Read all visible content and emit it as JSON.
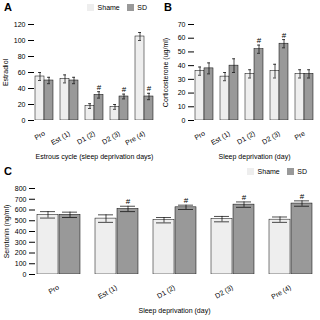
{
  "chart_data": [
    {
      "type": "bar",
      "title": "A",
      "x_label": "Estrous cycle (sleep deprivation days)",
      "y_label": "Estradiol",
      "categories": [
        "Pro",
        "Est (1)",
        "D1 (2)",
        "D2 (3)",
        "Pre (4)"
      ],
      "series": [
        {
          "name": "Shame",
          "color": "#eeeeee",
          "values": [
            55,
            52,
            18,
            17,
            105
          ],
          "errors": [
            5,
            5,
            3,
            3,
            5
          ]
        },
        {
          "name": "SD",
          "color": "#999999",
          "values": [
            50,
            50,
            32,
            30,
            30
          ],
          "errors": [
            4,
            4,
            4,
            3,
            4
          ]
        }
      ],
      "annotations": [
        {
          "text": "#",
          "series": "SD",
          "category": "D1 (2)"
        },
        {
          "text": "#",
          "series": "SD",
          "category": "D2 (3)"
        },
        {
          "text": "#",
          "series": "SD",
          "category": "Pre (4)"
        }
      ],
      "ylim": [
        0,
        120
      ],
      "yticks": [
        0,
        20,
        40,
        60,
        80,
        100,
        120
      ],
      "grid": false,
      "legend": "top"
    },
    {
      "type": "bar",
      "title": "B",
      "x_label": "Sleep deprivation (day)",
      "y_label": "Corticosterone (ug/ml)",
      "categories": [
        "Pro",
        "Est (1)",
        "D1 (2)",
        "D2 (3)",
        "Pre"
      ],
      "series": [
        {
          "name": "Shame",
          "color": "#eeeeee",
          "values": [
            36,
            32,
            34,
            36,
            34
          ],
          "errors": [
            3,
            3,
            3,
            5,
            3
          ]
        },
        {
          "name": "SD",
          "color": "#999999",
          "values": [
            38,
            40,
            52,
            56,
            34
          ],
          "errors": [
            4,
            5,
            3,
            3,
            3
          ]
        }
      ],
      "annotations": [
        {
          "text": "#",
          "series": "SD",
          "category": "D1 (2)"
        },
        {
          "text": "#",
          "series": "SD",
          "category": "D2 (3)"
        }
      ],
      "ylim": [
        0,
        70
      ],
      "yticks": [
        0,
        10,
        20,
        30,
        40,
        50,
        60,
        70
      ],
      "grid": false
    },
    {
      "type": "bar",
      "title": "C",
      "x_label": "Sleep deprivation (day)",
      "y_label": "Serotonin (ng/ml)",
      "categories": [
        "Pro",
        "Est (1)",
        "D1 (2)",
        "D2 (3)",
        "Pre (4)"
      ],
      "series": [
        {
          "name": "Shame",
          "color": "#eeeeee",
          "values": [
            555,
            520,
            505,
            515,
            510
          ],
          "errors": [
            30,
            35,
            25,
            25,
            25
          ]
        },
        {
          "name": "SD",
          "color": "#999999",
          "values": [
            555,
            610,
            625,
            650,
            660
          ],
          "errors": [
            25,
            25,
            20,
            25,
            25
          ]
        }
      ],
      "annotations": [
        {
          "text": "#",
          "series": "SD",
          "category": "Est (1)"
        },
        {
          "text": "#",
          "series": "SD",
          "category": "D1 (2)"
        },
        {
          "text": "#",
          "series": "SD",
          "category": "D2 (3)"
        },
        {
          "text": "#",
          "series": "SD",
          "category": "Pre (4)"
        }
      ],
      "ylim": [
        0,
        800
      ],
      "yticks": [
        0,
        100,
        200,
        300,
        400,
        500,
        600,
        700,
        800
      ],
      "grid": false,
      "legend": "upper right"
    }
  ]
}
